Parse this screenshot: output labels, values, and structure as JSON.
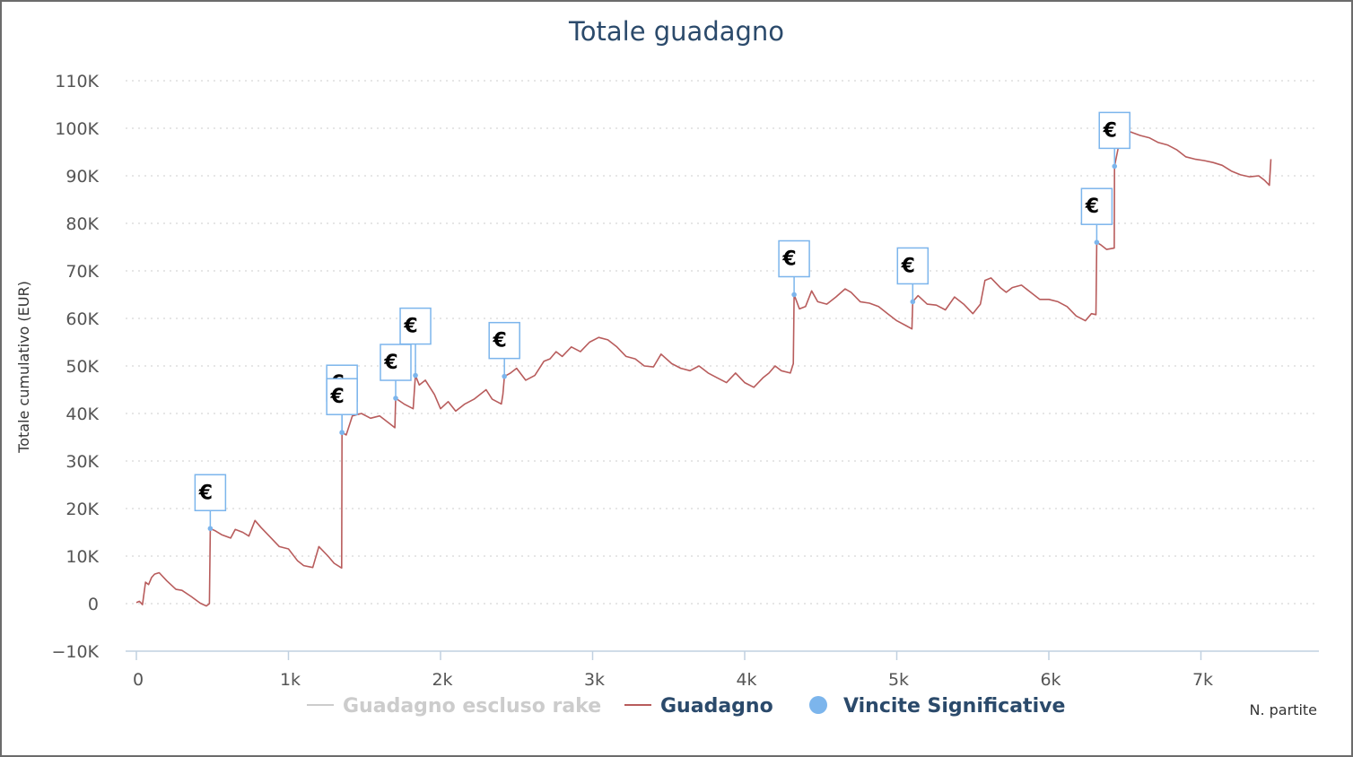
{
  "chart_data": {
    "type": "line",
    "title": "Totale guadagno",
    "ylabel": "Totale cumulativo (EUR)",
    "xlabel": "N. partite",
    "ylim": [
      -10000,
      110000
    ],
    "xlim": [
      -50,
      7700
    ],
    "yticks": [
      {
        "v": -10000,
        "label": "−10K"
      },
      {
        "v": 0,
        "label": "0"
      },
      {
        "v": 10000,
        "label": "10K"
      },
      {
        "v": 20000,
        "label": "20K"
      },
      {
        "v": 30000,
        "label": "30K"
      },
      {
        "v": 40000,
        "label": "40K"
      },
      {
        "v": 50000,
        "label": "50K"
      },
      {
        "v": 60000,
        "label": "60K"
      },
      {
        "v": 70000,
        "label": "70K"
      },
      {
        "v": 80000,
        "label": "80K"
      },
      {
        "v": 90000,
        "label": "90K"
      },
      {
        "v": 100000,
        "label": "100K"
      },
      {
        "v": 110000,
        "label": "110K"
      }
    ],
    "xticks": [
      {
        "v": 0,
        "label": "0"
      },
      {
        "v": 1000,
        "label": "1k"
      },
      {
        "v": 2000,
        "label": "2k"
      },
      {
        "v": 3000,
        "label": "3k"
      },
      {
        "v": 4000,
        "label": "4k"
      },
      {
        "v": 5000,
        "label": "5k"
      },
      {
        "v": 6000,
        "label": "6k"
      },
      {
        "v": 7000,
        "label": "7k"
      }
    ],
    "grid": "horizontal dotted",
    "legend_position": "bottom",
    "legend": [
      {
        "name": "Guadagno escluso rake",
        "color": "#cccccc",
        "symbol": "line",
        "hidden": true
      },
      {
        "name": "Guadagno",
        "color": "#b85c5c",
        "symbol": "line"
      },
      {
        "name": "Vincite Significative",
        "color": "#7cb5ec",
        "symbol": "circle"
      }
    ],
    "series": [
      {
        "name": "Guadagno",
        "color": "#b85c5c",
        "points": [
          [
            0,
            200
          ],
          [
            20,
            500
          ],
          [
            40,
            -200
          ],
          [
            60,
            4500
          ],
          [
            80,
            4000
          ],
          [
            100,
            5500
          ],
          [
            120,
            6200
          ],
          [
            150,
            6500
          ],
          [
            200,
            4800
          ],
          [
            260,
            3000
          ],
          [
            300,
            2800
          ],
          [
            360,
            1500
          ],
          [
            420,
            100
          ],
          [
            460,
            -500
          ],
          [
            480,
            0
          ],
          [
            486,
            15800
          ],
          [
            520,
            15300
          ],
          [
            560,
            14500
          ],
          [
            620,
            13800
          ],
          [
            650,
            15600
          ],
          [
            700,
            15000
          ],
          [
            740,
            14200
          ],
          [
            780,
            17500
          ],
          [
            820,
            16000
          ],
          [
            880,
            14000
          ],
          [
            940,
            12000
          ],
          [
            1000,
            11500
          ],
          [
            1060,
            9000
          ],
          [
            1100,
            8000
          ],
          [
            1160,
            7600
          ],
          [
            1200,
            12000
          ],
          [
            1260,
            10000
          ],
          [
            1300,
            8500
          ],
          [
            1350,
            7500
          ],
          [
            1352,
            36000
          ],
          [
            1380,
            35500
          ],
          [
            1420,
            39500
          ],
          [
            1480,
            40000
          ],
          [
            1540,
            39000
          ],
          [
            1600,
            39500
          ],
          [
            1660,
            38000
          ],
          [
            1700,
            37000
          ],
          [
            1705,
            43200
          ],
          [
            1760,
            42000
          ],
          [
            1820,
            41000
          ],
          [
            1835,
            48000
          ],
          [
            1860,
            46000
          ],
          [
            1900,
            47000
          ],
          [
            1960,
            44000
          ],
          [
            2000,
            41000
          ],
          [
            2050,
            42500
          ],
          [
            2100,
            40500
          ],
          [
            2160,
            42000
          ],
          [
            2220,
            43000
          ],
          [
            2260,
            44000
          ],
          [
            2300,
            45000
          ],
          [
            2340,
            43000
          ],
          [
            2400,
            42000
          ],
          [
            2410,
            44000
          ],
          [
            2420,
            47800
          ],
          [
            2460,
            48500
          ],
          [
            2500,
            49500
          ],
          [
            2560,
            47000
          ],
          [
            2620,
            48000
          ],
          [
            2680,
            51000
          ],
          [
            2720,
            51500
          ],
          [
            2760,
            53000
          ],
          [
            2800,
            52000
          ],
          [
            2860,
            54000
          ],
          [
            2920,
            53000
          ],
          [
            2980,
            55000
          ],
          [
            3040,
            56000
          ],
          [
            3100,
            55500
          ],
          [
            3160,
            54000
          ],
          [
            3220,
            52000
          ],
          [
            3280,
            51500
          ],
          [
            3340,
            50000
          ],
          [
            3400,
            49800
          ],
          [
            3450,
            52500
          ],
          [
            3520,
            50500
          ],
          [
            3580,
            49500
          ],
          [
            3640,
            49000
          ],
          [
            3700,
            50000
          ],
          [
            3760,
            48500
          ],
          [
            3820,
            47500
          ],
          [
            3880,
            46500
          ],
          [
            3940,
            48500
          ],
          [
            4000,
            46500
          ],
          [
            4060,
            45500
          ],
          [
            4120,
            47500
          ],
          [
            4160,
            48500
          ],
          [
            4200,
            50000
          ],
          [
            4240,
            49000
          ],
          [
            4300,
            48500
          ],
          [
            4320,
            50500
          ],
          [
            4325,
            65000
          ],
          [
            4360,
            62000
          ],
          [
            4400,
            62500
          ],
          [
            4440,
            65800
          ],
          [
            4480,
            63500
          ],
          [
            4540,
            63000
          ],
          [
            4600,
            64500
          ],
          [
            4660,
            66200
          ],
          [
            4700,
            65500
          ],
          [
            4760,
            63500
          ],
          [
            4820,
            63200
          ],
          [
            4880,
            62500
          ],
          [
            4940,
            61000
          ],
          [
            5000,
            59500
          ],
          [
            5060,
            58500
          ],
          [
            5100,
            57800
          ],
          [
            5105,
            63500
          ],
          [
            5140,
            64800
          ],
          [
            5200,
            63000
          ],
          [
            5260,
            62800
          ],
          [
            5320,
            61800
          ],
          [
            5380,
            64500
          ],
          [
            5440,
            63000
          ],
          [
            5500,
            61000
          ],
          [
            5550,
            63000
          ],
          [
            5580,
            68000
          ],
          [
            5620,
            68500
          ],
          [
            5680,
            66500
          ],
          [
            5720,
            65500
          ],
          [
            5760,
            66500
          ],
          [
            5820,
            67000
          ],
          [
            5880,
            65500
          ],
          [
            5940,
            64000
          ],
          [
            6000,
            64000
          ],
          [
            6060,
            63500
          ],
          [
            6120,
            62500
          ],
          [
            6180,
            60500
          ],
          [
            6240,
            59500
          ],
          [
            6280,
            61000
          ],
          [
            6310,
            60800
          ],
          [
            6315,
            76000
          ],
          [
            6340,
            75500
          ],
          [
            6380,
            74500
          ],
          [
            6430,
            74800
          ],
          [
            6432,
            92000
          ],
          [
            6460,
            96500
          ],
          [
            6500,
            99000
          ],
          [
            6540,
            99200
          ],
          [
            6600,
            98500
          ],
          [
            6660,
            98000
          ],
          [
            6720,
            97000
          ],
          [
            6780,
            96500
          ],
          [
            6840,
            95500
          ],
          [
            6900,
            94000
          ],
          [
            6960,
            93500
          ],
          [
            7020,
            93200
          ],
          [
            7080,
            92800
          ],
          [
            7140,
            92200
          ],
          [
            7200,
            91000
          ],
          [
            7260,
            90200
          ],
          [
            7320,
            89800
          ],
          [
            7380,
            90000
          ],
          [
            7420,
            89000
          ],
          [
            7450,
            88000
          ],
          [
            7460,
            93500
          ]
        ]
      },
      {
        "name": "Vincite Significative",
        "color": "#7cb5ec",
        "symbol": "€",
        "points": [
          [
            486,
            15800
          ],
          [
            1352,
            36000
          ],
          [
            1352,
            36000
          ],
          [
            1705,
            43200
          ],
          [
            1835,
            48000
          ],
          [
            2420,
            47800
          ],
          [
            4325,
            65000
          ],
          [
            5105,
            63500
          ],
          [
            6315,
            76000
          ],
          [
            6432,
            92000
          ]
        ]
      }
    ]
  }
}
